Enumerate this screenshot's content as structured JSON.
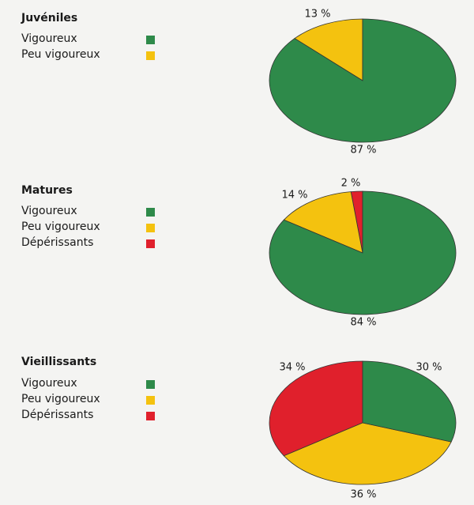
{
  "chart_data": [
    {
      "type": "pie",
      "title": "Juvéniles",
      "legend": [
        {
          "label": "Vigoureux",
          "color": "#2e8a4a"
        },
        {
          "label": "Peu vigoureux",
          "color": "#f4c20f"
        }
      ],
      "slices": [
        {
          "label": "Peu vigoureux",
          "value": 13,
          "text": "13 %",
          "color": "#f4c20f"
        },
        {
          "label": "Vigoureux",
          "value": 87,
          "text": "87 %",
          "color": "#2e8a4a"
        }
      ]
    },
    {
      "type": "pie",
      "title": "Matures",
      "legend": [
        {
          "label": "Vigoureux",
          "color": "#2e8a4a"
        },
        {
          "label": "Peu vigoureux",
          "color": "#f4c20f"
        },
        {
          "label": "Dépérissants",
          "color": "#e0202c"
        }
      ],
      "slices": [
        {
          "label": "Dépérissants",
          "value": 2,
          "text": "2 %",
          "color": "#e0202c"
        },
        {
          "label": "Peu vigoureux",
          "value": 14,
          "text": "14 %",
          "color": "#f4c20f"
        },
        {
          "label": "Vigoureux",
          "value": 84,
          "text": "84 %",
          "color": "#2e8a4a"
        }
      ]
    },
    {
      "type": "pie",
      "title": "Vieillissants",
      "legend": [
        {
          "label": "Vigoureux",
          "color": "#2e8a4a"
        },
        {
          "label": "Peu vigoureux",
          "color": "#f4c20f"
        },
        {
          "label": "Dépérissants",
          "color": "#e0202c"
        }
      ],
      "slices": [
        {
          "label": "Dépérissants",
          "value": 34,
          "text": "34 %",
          "color": "#e0202c"
        },
        {
          "label": "Peu vigoureux",
          "value": 36,
          "text": "36 %",
          "color": "#f4c20f"
        },
        {
          "label": "Vigoureux",
          "value": 30,
          "text": "30 %",
          "color": "#2e8a4a"
        }
      ]
    }
  ]
}
